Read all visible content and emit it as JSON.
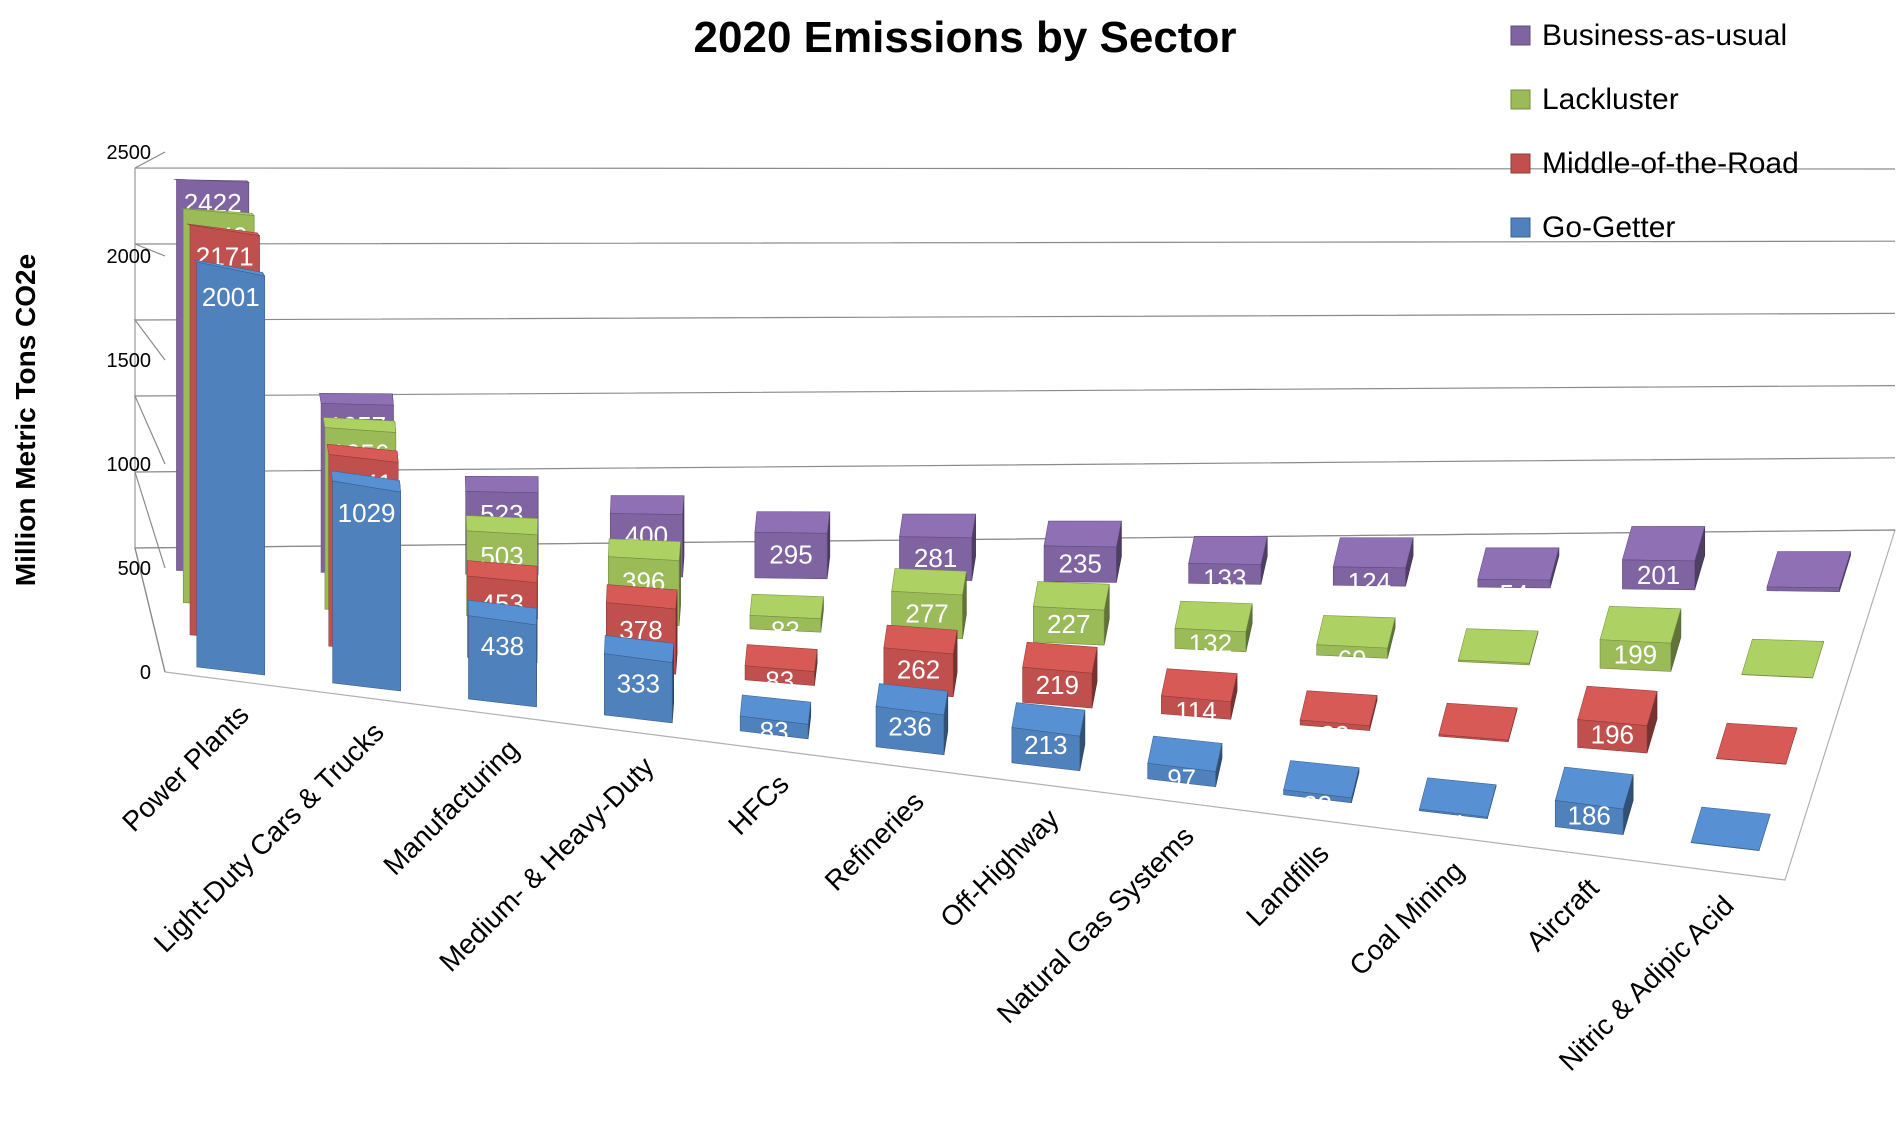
{
  "chart_data": {
    "type": "bar",
    "variant": "3d-clustered-depth",
    "title": "2020 Emissions by Sector",
    "ylabel": "Million Metric Tons CO2e",
    "xlabel": "",
    "ylim": [
      0,
      2500
    ],
    "yticks": [
      0,
      500,
      1000,
      1500,
      2000,
      2500
    ],
    "grid": true,
    "legend_position": "top-right",
    "categories": [
      "Power Plants",
      "Light-Duty Cars & Trucks",
      "Manufacturing",
      "Medium- & Heavy-Duty",
      "HFCs",
      "Refineries",
      "Off-Highway",
      "Natural Gas Systems",
      "Landfills",
      "Coal Mining",
      "Aircraft",
      "Nitric & Adipic Acid"
    ],
    "series": [
      {
        "name": "Go-Getter",
        "color": "#4f81bd",
        "values": [
          2001,
          1029,
          438,
          333,
          83,
          236,
          213,
          97,
          32,
          11,
          186,
          2
        ]
      },
      {
        "name": "Middle-of-the-Road",
        "color": "#c0504d",
        "values": [
          2171,
          1041,
          453,
          378,
          83,
          262,
          219,
          114,
          32,
          11,
          196,
          2
        ]
      },
      {
        "name": "Lackluster",
        "color": "#9bbb59",
        "values": [
          2249,
          1056,
          503,
          396,
          83,
          277,
          227,
          132,
          69,
          11,
          199,
          2
        ]
      },
      {
        "name": "Business-as-usual",
        "color": "#8064a2",
        "values": [
          2422,
          1057,
          523,
          400,
          295,
          281,
          235,
          133,
          124,
          54,
          201,
          27
        ]
      }
    ]
  }
}
